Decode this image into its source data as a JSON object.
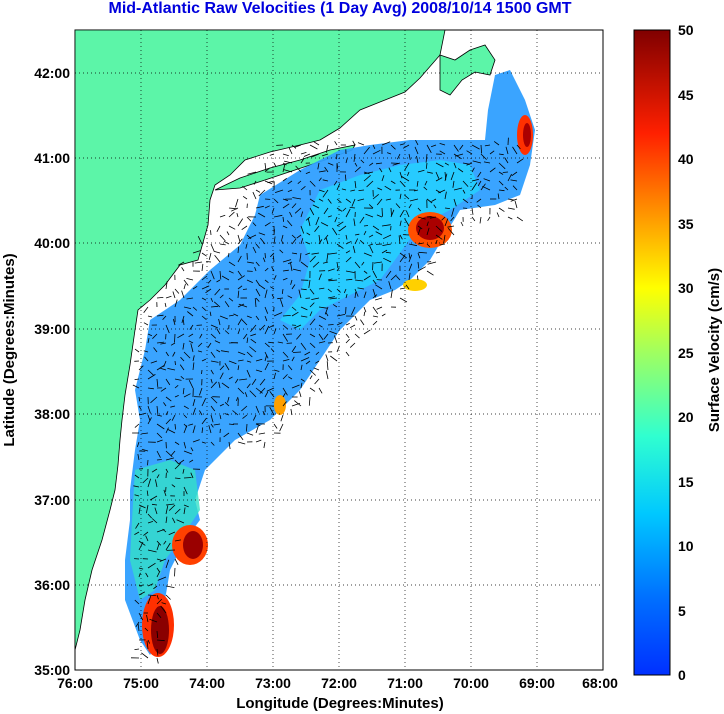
{
  "title": "Mid-Atlantic Raw Velocities (1 Day Avg) 2008/10/14 1500 GMT",
  "chart_data": {
    "type": "heatmap",
    "title": "Mid-Atlantic Raw Velocities (1 Day Avg) 2008/10/14 1500 GMT",
    "xlabel": "Longitude (Degrees:Minutes)",
    "ylabel": "Latitude (Degrees:Minutes)",
    "x_ticks": [
      "76:00",
      "75:00",
      "74:00",
      "73:00",
      "72:00",
      "71:00",
      "70:00",
      "69:00",
      "68:00"
    ],
    "y_ticks": [
      "35:00",
      "36:00",
      "37:00",
      "38:00",
      "39:00",
      "40:00",
      "41:00",
      "42:00"
    ],
    "xlim": [
      -76,
      -68
    ],
    "ylim": [
      35,
      42.5
    ],
    "grid": true,
    "colorbar": {
      "label": "Surface Velocity (cm/s)",
      "ticks": [
        0,
        5,
        10,
        15,
        20,
        25,
        30,
        35,
        40,
        45,
        50
      ],
      "range": [
        0,
        50
      ]
    },
    "colors": {
      "land": "#5cf5a8",
      "title": "#0000dd"
    }
  }
}
